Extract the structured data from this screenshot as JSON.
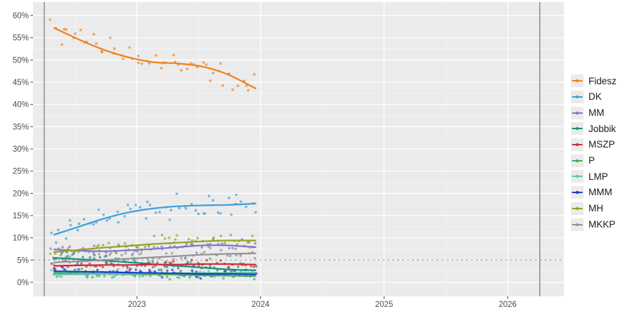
{
  "chart_data": {
    "type": "scatter",
    "description": "Opinion polling for Hungarian parliamentary election: poll scatter points with smoothed trend lines per party",
    "title": "",
    "xlabel": "",
    "ylabel": "",
    "x_domain": [
      2022.159,
      2026.455
    ],
    "y_domain": [
      0,
      60
    ],
    "x_ticks": [
      {
        "value": 2023,
        "label": "2023"
      },
      {
        "value": 2024,
        "label": "2024"
      },
      {
        "value": 2025,
        "label": "2025"
      },
      {
        "value": 2026,
        "label": "2026"
      }
    ],
    "x_minor_ticks": [
      2022.5,
      2023.5,
      2024.5,
      2025.5
    ],
    "y_ticks": [
      {
        "value": 0,
        "label": "0%"
      },
      {
        "value": 5,
        "label": "5%"
      },
      {
        "value": 10,
        "label": "10%"
      },
      {
        "value": 15,
        "label": "15%"
      },
      {
        "value": 20,
        "label": "20%"
      },
      {
        "value": 25,
        "label": "25%"
      },
      {
        "value": 30,
        "label": "30%"
      },
      {
        "value": 35,
        "label": "35%"
      },
      {
        "value": 40,
        "label": "40%"
      },
      {
        "value": 45,
        "label": "45%"
      },
      {
        "value": 50,
        "label": "50%"
      },
      {
        "value": 55,
        "label": "55%"
      },
      {
        "value": 60,
        "label": "60%"
      }
    ],
    "threshold_line": {
      "value": 5,
      "style": "dashed"
    },
    "election_lines": [
      2022.25,
      2026.26
    ],
    "grid": true,
    "legend_position": "right",
    "trend_x": [
      2022.33,
      2022.53,
      2022.73,
      2022.93,
      2023.13,
      2023.33,
      2023.53,
      2023.73,
      2023.96
    ],
    "series": [
      {
        "name": "Fidesz",
        "color": "#F0801F",
        "trend": [
          57.2,
          54.6,
          52.3,
          50.6,
          49.5,
          49.2,
          48.5,
          46.8,
          43.6
        ],
        "jitter": 2.8
      },
      {
        "name": "DK",
        "color": "#3D9FD8",
        "trend": [
          10.7,
          12.5,
          14.3,
          15.7,
          16.6,
          17.1,
          17.3,
          17.4,
          17.7
        ],
        "jitter": 2.3
      },
      {
        "name": "MM",
        "color": "#8673C8",
        "trend": [
          7.4,
          7.1,
          7.0,
          7.2,
          7.5,
          7.9,
          8.3,
          8.3,
          7.9
        ],
        "jitter": 1.3
      },
      {
        "name": "Jobbik",
        "color": "#12917A",
        "trend": [
          5.5,
          5.2,
          4.9,
          4.5,
          4.1,
          3.7,
          3.3,
          2.9,
          2.7
        ],
        "jitter": 1.2
      },
      {
        "name": "MSZP",
        "color": "#C92C3B",
        "trend": [
          3.7,
          3.8,
          3.9,
          3.9,
          4.0,
          4.0,
          4.1,
          4.1,
          4.0
        ],
        "jitter": 1.1
      },
      {
        "name": "P",
        "color": "#3FAD5B",
        "trend": [
          2.1,
          2.0,
          1.9,
          1.8,
          1.8,
          1.7,
          1.6,
          1.5,
          1.4
        ],
        "jitter": 0.9
      },
      {
        "name": "LMP",
        "color": "#55C7A7",
        "trend": [
          1.8,
          1.8,
          1.9,
          1.9,
          2.0,
          2.0,
          2.1,
          2.1,
          2.2
        ],
        "jitter": 0.9
      },
      {
        "name": "MMM",
        "color": "#2139C7",
        "trend": [
          2.5,
          2.4,
          2.3,
          2.2,
          2.1,
          2.0,
          1.9,
          1.9,
          1.8
        ],
        "jitter": 0.9
      },
      {
        "name": "MH",
        "color": "#96A21E",
        "trend": [
          6.8,
          7.3,
          7.8,
          8.2,
          8.6,
          8.9,
          9.2,
          9.4,
          9.4
        ],
        "jitter": 1.6
      },
      {
        "name": "MKKP",
        "color": "#929292",
        "trend": [
          4.5,
          4.7,
          5.0,
          5.3,
          5.6,
          5.9,
          6.2,
          6.4,
          6.5
        ],
        "jitter": 1.3
      }
    ],
    "scatter": {
      "count": 52,
      "x_start": 2022.3,
      "x_end": 2023.97,
      "seed": 987654321,
      "radius": 1.8,
      "opacity": 0.7
    }
  },
  "colors": {
    "page_bg": "#FFFFFF",
    "panel_bg": "#EBEBEB",
    "grid_major": "#FFFFFF",
    "grid_minor": "rgba(255,255,255,0.55)",
    "threshold": "#B0B0B0",
    "election_line": "#5F5F5F",
    "tick_text": "#4D4D4D",
    "tick_mark": "#333333",
    "legend_text": "#1A1A1A",
    "legend_key_bg": "#EBEBEB"
  }
}
